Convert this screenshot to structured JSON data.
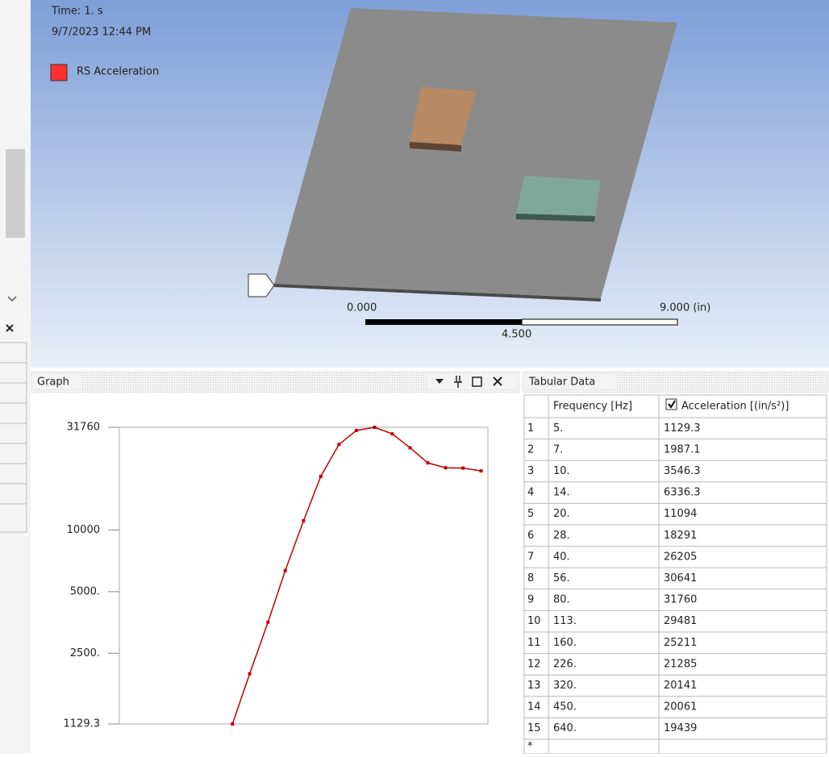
{
  "viewport": {
    "time": "Time: 1. s",
    "date": "9/7/2023 12:44 PM",
    "legend": "RS Acceleration",
    "scale": {
      "min": "0.000",
      "max": "9.000 (in)",
      "mid": "4.500"
    }
  },
  "graph_panel": {
    "title": "Graph"
  },
  "chart_data": {
    "type": "line",
    "x": [
      5,
      7,
      10,
      14,
      20,
      28,
      40,
      56,
      80,
      113,
      160,
      226,
      320,
      450,
      640
    ],
    "values": [
      1129.3,
      1987.1,
      3546.3,
      6336.3,
      11094,
      18291,
      26205,
      30641,
      31760,
      29481,
      25211,
      21285,
      20141,
      20061,
      19439
    ],
    "color": "#c00000",
    "xscale": "log",
    "yscale": "log",
    "xlim": [
      0.55,
      730
    ],
    "ylim": [
      1129.3,
      31760
    ],
    "yticks": [
      31760,
      10000,
      {
        "value": 5000,
        "label": "5000."
      },
      {
        "value": 2500,
        "label": "2500."
      },
      1129.3
    ]
  },
  "tabular_data": {
    "title": "Tabular Data",
    "columns": [
      "Frequency [Hz]",
      "Acceleration [(in/s²)]"
    ],
    "row_labels": [
      "1",
      "2",
      "3",
      "4",
      "5",
      "6",
      "7",
      "8",
      "9",
      "10",
      "11",
      "12",
      "13",
      "14",
      "15",
      "*"
    ],
    "rows": [
      [
        "5.",
        "1129.3"
      ],
      [
        "7.",
        "1987.1"
      ],
      [
        "10.",
        "3546.3"
      ],
      [
        "14.",
        "6336.3"
      ],
      [
        "20.",
        "11094"
      ],
      [
        "28.",
        "18291"
      ],
      [
        "40.",
        "26205"
      ],
      [
        "56.",
        "30641"
      ],
      [
        "80.",
        "31760"
      ],
      [
        "113.",
        "29481"
      ],
      [
        "160.",
        "25211"
      ],
      [
        "226.",
        "21285"
      ],
      [
        "320.",
        "20141"
      ],
      [
        "450.",
        "20061"
      ],
      [
        "640.",
        "19439"
      ]
    ]
  }
}
